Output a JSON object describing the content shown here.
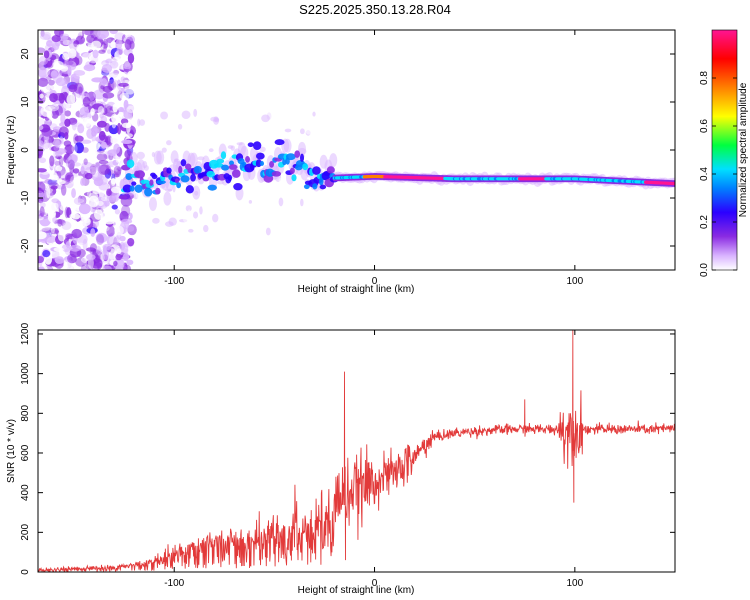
{
  "figure": {
    "title": "S225.2025.350.13.28.R04"
  },
  "colors": {
    "signal": "#e23a3a",
    "axis": "#000000",
    "colormap": [
      "#ffffff",
      "#d9b3ff",
      "#8a2be2",
      "#2b00ff",
      "#0080ff",
      "#00e0ff",
      "#00ff40",
      "#ffff00",
      "#ff8000",
      "#ff0000",
      "#ff1493"
    ]
  },
  "chart_data": [
    {
      "type": "heatmap",
      "title": "S225.2025.350.13.28.R04",
      "xlabel": "Height of straight line (km)",
      "ylabel": "Frequency (Hz)",
      "xlim": [
        -168,
        150
      ],
      "ylim": [
        -25,
        25
      ],
      "xticks": [
        -100,
        0,
        100
      ],
      "yticks": [
        -20,
        -10,
        0,
        10,
        20
      ],
      "colorbar": {
        "label": "Normalized spectral amplitude",
        "range": [
          0.0,
          1.0
        ],
        "ticks": [
          "0.0",
          "0.2",
          "0.4",
          "0.6",
          "0.8"
        ]
      },
      "ridge": [
        {
          "x": -120,
          "y": -6
        },
        {
          "x": -100,
          "y": -6
        },
        {
          "x": -80,
          "y": -4
        },
        {
          "x": -60,
          "y": -3
        },
        {
          "x": -45,
          "y": -2
        },
        {
          "x": -30,
          "y": -6
        },
        {
          "x": 0,
          "y": -5.5
        },
        {
          "x": 40,
          "y": -6
        },
        {
          "x": 80,
          "y": -6
        },
        {
          "x": 100,
          "y": -6
        },
        {
          "x": 150,
          "y": -7
        }
      ]
    },
    {
      "type": "line",
      "xlabel": "Height of straight line (km)",
      "ylabel": "SNR (10 * v/v)",
      "xlim": [
        -168,
        150
      ],
      "ylim": [
        0,
        1220
      ],
      "xticks": [
        -100,
        0,
        100
      ],
      "yticks": [
        0,
        200,
        400,
        600,
        800,
        1000,
        1200
      ],
      "series": [
        {
          "name": "SNR",
          "x": [
            -168,
            -150,
            -130,
            -120,
            -110,
            -100,
            -90,
            -80,
            -70,
            -60,
            -50,
            -40,
            -30,
            -25,
            -20,
            -15,
            -10,
            -5,
            0,
            5,
            10,
            15,
            20,
            25,
            30,
            40,
            50,
            60,
            70,
            80,
            90,
            95,
            100,
            105,
            110,
            120,
            130,
            140,
            150
          ],
          "values": [
            10,
            20,
            25,
            40,
            60,
            100,
            140,
            170,
            170,
            180,
            210,
            240,
            280,
            320,
            370,
            390,
            410,
            430,
            460,
            480,
            500,
            540,
            580,
            640,
            680,
            700,
            710,
            715,
            720,
            720,
            720,
            715,
            720,
            720,
            720,
            720,
            720,
            720,
            725
          ],
          "spikes": [
            {
              "x": -15,
              "y": 1010
            },
            {
              "x": -14.5,
              "y": 60
            },
            {
              "x": 75,
              "y": 870
            },
            {
              "x": 99,
              "y": 1220
            },
            {
              "x": 99.5,
              "y": 350
            }
          ]
        }
      ]
    }
  ]
}
